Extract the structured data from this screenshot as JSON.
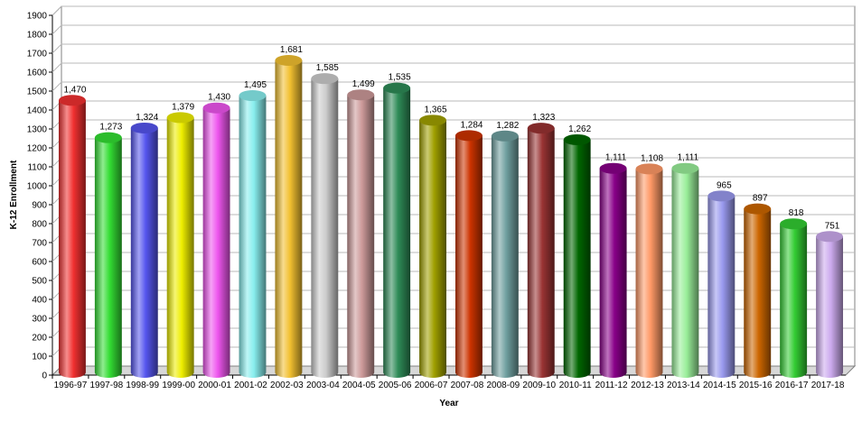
{
  "chart_data": {
    "type": "bar",
    "title": "",
    "xlabel": "Year",
    "ylabel": "K-12 Enrollment",
    "ylim": [
      0,
      1900
    ],
    "ytick_step": 100,
    "grid": true,
    "legend": "none",
    "style": "3d-cylinder",
    "categories": [
      "1996-97",
      "1997-98",
      "1998-99",
      "1999-00",
      "2000-01",
      "2001-02",
      "2002-03",
      "2003-04",
      "2004-05",
      "2005-06",
      "2006-07",
      "2007-08",
      "2008-09",
      "2009-10",
      "2010-11",
      "2011-12",
      "2012-13",
      "2013-14",
      "2014-15",
      "2015-16",
      "2016-17",
      "2017-18"
    ],
    "values": [
      1470,
      1273,
      1324,
      1379,
      1430,
      1495,
      1681,
      1585,
      1499,
      1535,
      1365,
      1284,
      1282,
      1323,
      1262,
      1111,
      1108,
      1111,
      965,
      897,
      818,
      751
    ],
    "value_labels": [
      "1,470",
      "1,273",
      "1,324",
      "1,379",
      "1,430",
      "1,495",
      "1,681",
      "1,585",
      "1,499",
      "1,535",
      "1,365",
      "1,284",
      "1,282",
      "1,323",
      "1,262",
      "1,111",
      "1,108",
      "1,111",
      "965",
      "897",
      "818",
      "751"
    ],
    "colors": [
      "#f03030",
      "#33dd33",
      "#5555ee",
      "#eeee00",
      "#ee55ee",
      "#88eeee",
      "#f2c030",
      "#cccccc",
      "#cc9999",
      "#2e8b57",
      "#a0a000",
      "#cc3300",
      "#6f9f9f",
      "#993333",
      "#006600",
      "#880088",
      "#ff9966",
      "#99ee99",
      "#9999ee",
      "#cc6600",
      "#33cc33",
      "#ccaaee"
    ]
  }
}
